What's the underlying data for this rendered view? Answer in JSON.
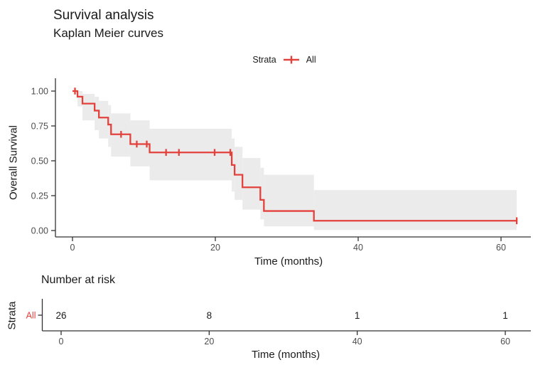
{
  "title": "Survival analysis",
  "subtitle": "Kaplan Meier curves",
  "legend": {
    "label": "Strata",
    "strata": [
      {
        "name": "All",
        "color": "#E3423C"
      }
    ]
  },
  "colors": {
    "curve": "#E3423C",
    "ribbon": "#EBEBEB",
    "axis_line": "#333333",
    "tick_label": "#4D4D4D",
    "text": "#1A1A1A"
  },
  "chart_data": {
    "type": "line",
    "subtype": "kaplan-meier-step-curve",
    "title": "Survival analysis",
    "subtitle": "Kaplan Meier curves",
    "xlabel": "Time (months)",
    "ylabel": "Overall Survival",
    "xlim": [
      -2.4,
      64
    ],
    "ylim": [
      0,
      1.05
    ],
    "xticks": [
      "0",
      "20",
      "40",
      "60"
    ],
    "xtick_values": [
      0,
      20,
      40,
      60
    ],
    "yticks": [
      "0.00",
      "0.25",
      "0.50",
      "0.75",
      "1.00"
    ],
    "ytick_values": [
      0,
      0.25,
      0.5,
      0.75,
      1.0
    ],
    "grid": false,
    "legend_position": "top",
    "series": [
      {
        "name": "All",
        "steps": [
          [
            0,
            1.0
          ],
          [
            0.7,
            0.96
          ],
          [
            1.4,
            0.91
          ],
          [
            3.1,
            0.86
          ],
          [
            3.7,
            0.81
          ],
          [
            5.0,
            0.76
          ],
          [
            5.4,
            0.69
          ],
          [
            8.1,
            0.62
          ],
          [
            10.8,
            0.56
          ],
          [
            22.3,
            0.47
          ],
          [
            22.7,
            0.4
          ],
          [
            23.8,
            0.31
          ],
          [
            26.3,
            0.22
          ],
          [
            26.8,
            0.14
          ],
          [
            33.8,
            0.07
          ]
        ],
        "end_time": 62.2,
        "censors": [
          [
            0.35,
            1.0
          ],
          [
            6.8,
            0.69
          ],
          [
            9.0,
            0.62
          ],
          [
            10.4,
            0.62
          ],
          [
            13.1,
            0.56
          ],
          [
            14.9,
            0.56
          ],
          [
            19.9,
            0.56
          ],
          [
            22.1,
            0.56
          ],
          [
            62.2,
            0.07
          ]
        ],
        "confidence_band": [
          [
            0.7,
            1.4,
            0.89,
            1.0
          ],
          [
            1.4,
            3.1,
            0.79,
            0.98
          ],
          [
            3.1,
            3.7,
            0.72,
            0.96
          ],
          [
            3.7,
            5.0,
            0.66,
            0.93
          ],
          [
            5.0,
            5.4,
            0.6,
            0.9
          ],
          [
            5.4,
            8.1,
            0.53,
            0.84
          ],
          [
            8.1,
            10.8,
            0.46,
            0.79
          ],
          [
            10.8,
            22.3,
            0.36,
            0.73
          ],
          [
            22.3,
            22.7,
            0.28,
            0.66
          ],
          [
            22.7,
            23.8,
            0.22,
            0.6
          ],
          [
            23.8,
            26.3,
            0.15,
            0.52
          ],
          [
            26.3,
            26.8,
            0.08,
            0.45
          ],
          [
            26.8,
            33.8,
            0.03,
            0.4
          ],
          [
            33.8,
            62.2,
            0.004,
            0.29
          ]
        ]
      }
    ],
    "risk_table": {
      "title": "Number at risk",
      "ylabel": "Strata",
      "xlabel": "Time (months)",
      "xticks": [
        "0",
        "20",
        "40",
        "60"
      ],
      "xtick_values": [
        0,
        20,
        40,
        60
      ],
      "rows": [
        {
          "name": "All",
          "times": [
            0,
            20,
            40,
            60
          ],
          "counts": [
            "26",
            "8",
            "1",
            "1"
          ]
        }
      ]
    }
  }
}
